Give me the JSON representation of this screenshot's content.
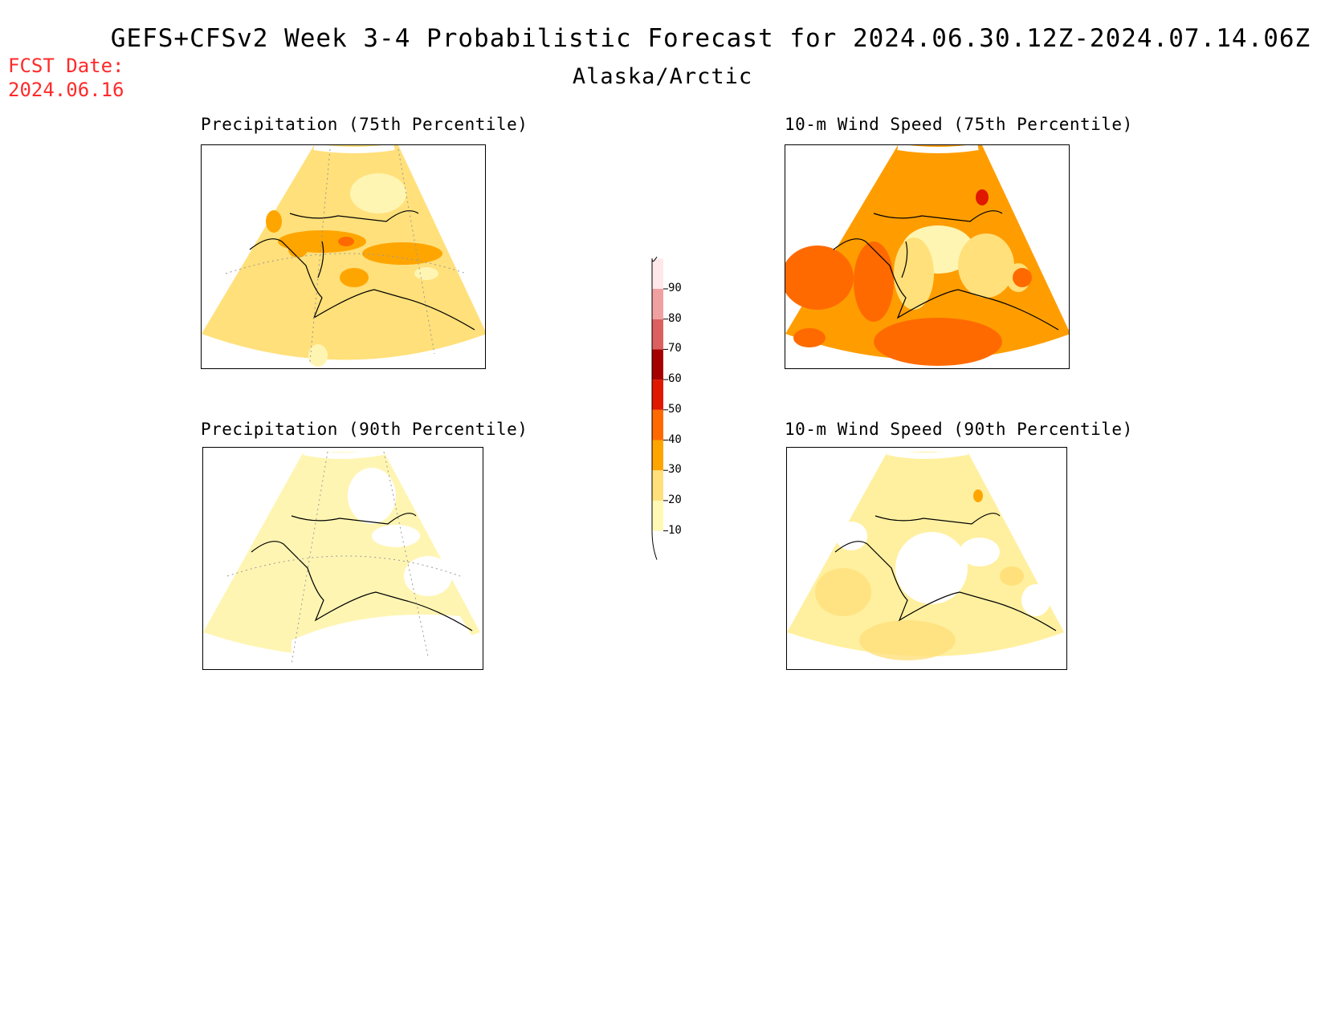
{
  "header": {
    "title": "GEFS+CFSv2 Week 3-4 Probabilistic Forecast for 2024.06.30.12Z-2024.07.14.06Z",
    "subtitle": "Alaska/Arctic",
    "fcst_date_label": "FCST Date:",
    "fcst_date_value": "2024.06.16"
  },
  "panels": [
    {
      "id": "precip75",
      "title": "Precipitation (75th Percentile)",
      "base_color": "#ffe07a"
    },
    {
      "id": "wind75",
      "title": "10-m Wind Speed (75th Percentile)",
      "base_color": "#ff9d00"
    },
    {
      "id": "precip90",
      "title": "Precipitation (90th Percentile)",
      "base_color": "#fff5b3"
    },
    {
      "id": "wind90",
      "title": "10-m Wind Speed (90th Percentile)",
      "base_color": "#fff0a0"
    }
  ],
  "legend": {
    "levels": [
      "10",
      "20",
      "30",
      "40",
      "50",
      "60",
      "70",
      "80",
      "90"
    ],
    "colors": [
      "#fff9b5",
      "#ffe07a",
      "#ffa500",
      "#ff6a00",
      "#e01800",
      "#a50000",
      "#dc6060",
      "#f0a0a0",
      "#ffe8ea"
    ]
  }
}
